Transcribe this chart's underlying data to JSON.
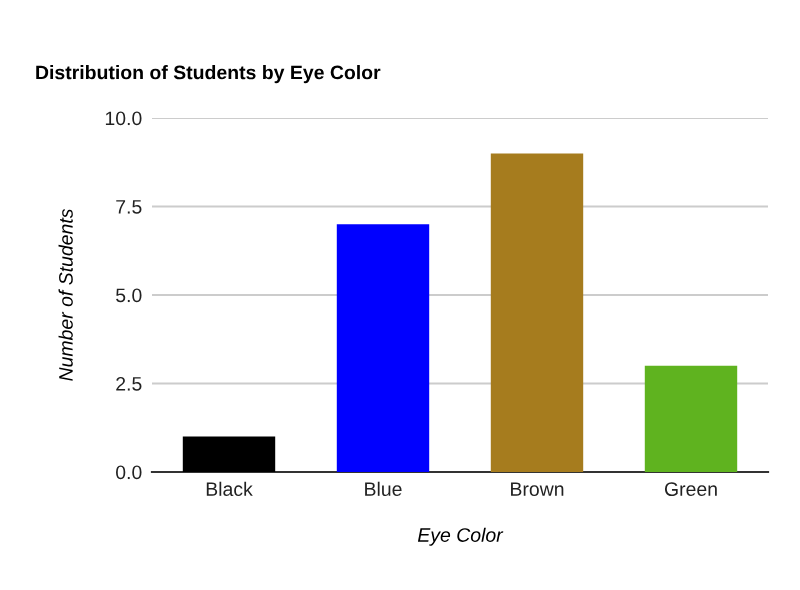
{
  "chart_data": {
    "type": "bar",
    "title": "Distribution of Students by Eye Color",
    "xlabel": "Eye Color",
    "ylabel": "Number of Students",
    "categories": [
      "Black",
      "Blue",
      "Brown",
      "Green"
    ],
    "values": [
      1,
      7,
      9,
      3
    ],
    "colors": [
      "#000000",
      "#0000ff",
      "#a67c1e",
      "#5fb31f"
    ],
    "ylim": [
      0,
      10
    ],
    "yticks": [
      {
        "value": 0,
        "label": "0.0"
      },
      {
        "value": 2.5,
        "label": "2.5"
      },
      {
        "value": 5,
        "label": "5.0"
      },
      {
        "value": 7.5,
        "label": "7.5"
      },
      {
        "value": 10,
        "label": "10.0"
      }
    ],
    "grid": "y"
  }
}
